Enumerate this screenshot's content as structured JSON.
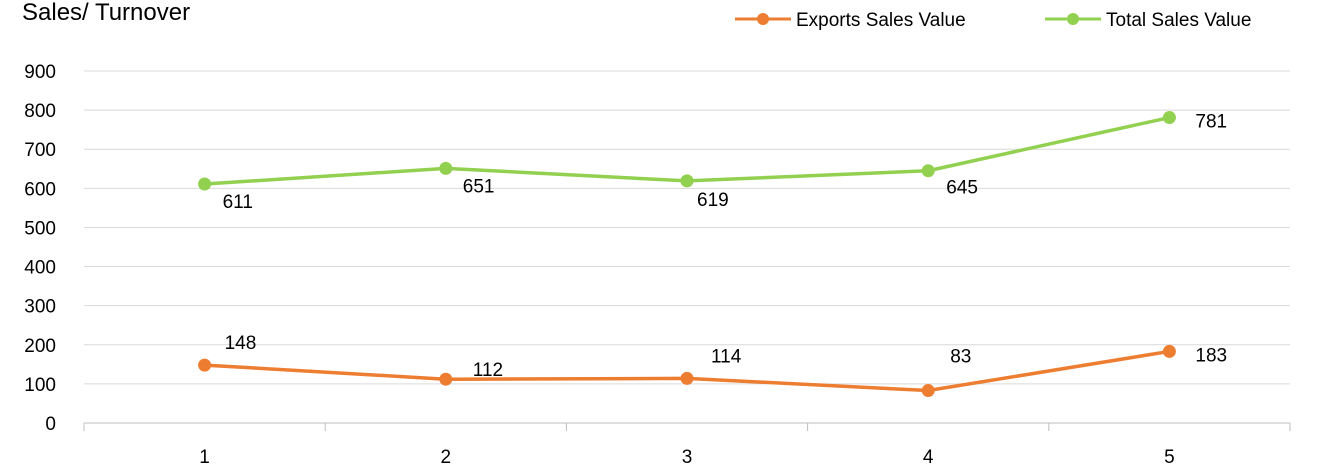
{
  "chart_data": {
    "type": "line",
    "title": "Sales/ Turnover",
    "xlabel": "",
    "ylabel": "",
    "categories": [
      "1",
      "2",
      "3",
      "4",
      "5"
    ],
    "ylim": [
      0,
      900
    ],
    "yticks": [
      "0",
      "100",
      "200",
      "300",
      "400",
      "500",
      "600",
      "700",
      "800",
      "900"
    ],
    "grid": true,
    "legend_position": "top-right",
    "series": [
      {
        "name": "Exports Sales Value",
        "color": "#ed7d31",
        "values": [
          148,
          112,
          114,
          83,
          183
        ],
        "labels": [
          "148",
          "112",
          "114",
          "83",
          "183"
        ]
      },
      {
        "name": "Total Sales Value",
        "color": "#92d050",
        "values": [
          611,
          651,
          619,
          645,
          781
        ],
        "labels": [
          "611",
          "651",
          "619",
          "645",
          "781"
        ]
      }
    ]
  }
}
